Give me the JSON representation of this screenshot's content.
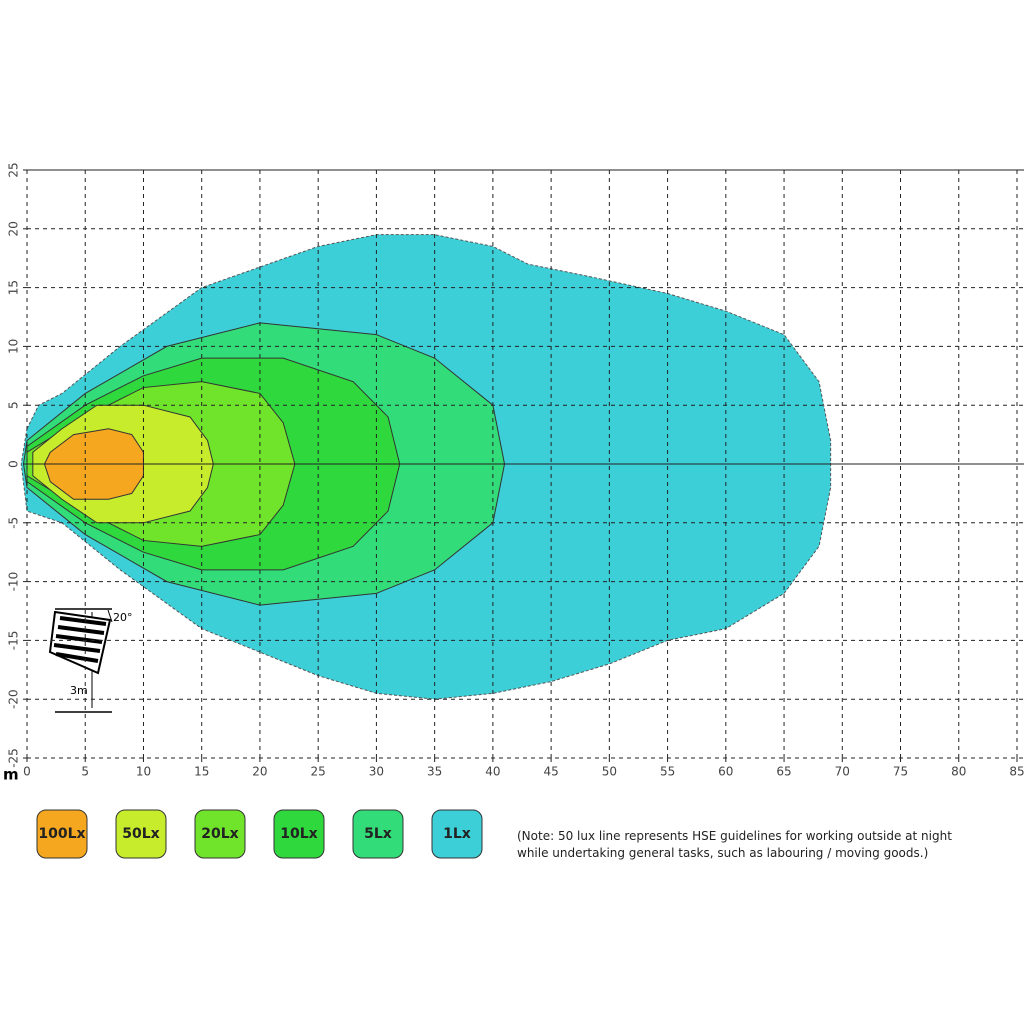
{
  "chart_data": {
    "type": "contour",
    "xlabel": "m",
    "xlim": [
      0,
      85
    ],
    "ylim": [
      -25,
      25
    ],
    "xticks": [
      0,
      5,
      10,
      15,
      20,
      25,
      30,
      35,
      40,
      45,
      50,
      55,
      60,
      65,
      70,
      75,
      80,
      85
    ],
    "yticks": [
      25,
      20,
      15,
      10,
      5,
      0,
      -5,
      -10,
      -15,
      -20,
      -25
    ],
    "grid": true,
    "series": [
      {
        "name": "100Lx",
        "color": "#f5a81f",
        "x": [
          2,
          4,
          7,
          9,
          10,
          10,
          9,
          7,
          4,
          2,
          1.5
        ],
        "y": [
          1,
          2.5,
          3,
          2.5,
          1,
          -1,
          -2.5,
          -3,
          -3,
          -1.5,
          0
        ]
      },
      {
        "name": "50Lx",
        "color": "#c6ec2c",
        "x": [
          0.5,
          3,
          6,
          10,
          14,
          15.5,
          16,
          15.5,
          14,
          10,
          6,
          3,
          0.5
        ],
        "y": [
          1,
          3,
          5,
          5,
          4,
          2,
          0,
          -2,
          -4,
          -5,
          -5,
          -3,
          -1
        ]
      },
      {
        "name": "20Lx",
        "color": "#70e42a",
        "x": [
          0,
          5,
          10,
          15,
          20,
          22,
          23,
          22,
          20,
          15,
          10,
          5,
          0
        ],
        "y": [
          1,
          4,
          6.5,
          7,
          6,
          3.5,
          0,
          -3.5,
          -6,
          -7,
          -6.5,
          -4,
          -1
        ]
      },
      {
        "name": "10Lx",
        "color": "#2fd83c",
        "x": [
          0,
          5,
          10,
          15,
          22,
          28,
          31,
          32,
          31,
          28,
          22,
          15,
          10,
          5,
          0
        ],
        "y": [
          1.5,
          5,
          7.5,
          9,
          9,
          7,
          4,
          0,
          -4,
          -7,
          -9,
          -9,
          -7.5,
          -5,
          -1.5
        ]
      },
      {
        "name": "5Lx",
        "color": "#32dc78",
        "x": [
          0,
          5,
          12,
          20,
          25,
          30,
          35,
          40,
          41,
          40,
          35,
          30,
          25,
          20,
          12,
          5,
          0,
          -0.3
        ],
        "y": [
          2,
          6,
          10,
          12,
          11.5,
          11,
          9,
          5,
          0,
          -5,
          -9,
          -11,
          -11.5,
          -12,
          -10,
          -6,
          -2,
          0
        ]
      },
      {
        "name": "1Lx",
        "color": "#3ccfd8",
        "x": [
          0,
          1,
          3,
          8,
          15,
          25,
          30,
          35,
          40,
          43,
          48,
          55,
          60,
          65,
          68,
          69,
          69,
          68,
          65,
          60,
          55,
          50,
          45,
          40,
          35,
          30,
          25,
          15,
          8,
          3,
          0,
          -0.5
        ],
        "y": [
          3,
          5,
          6,
          10,
          15,
          18.5,
          19.5,
          19.5,
          18.5,
          17,
          16,
          14.5,
          13,
          11,
          7,
          2,
          -2,
          -7,
          -11,
          -14,
          -15,
          -17,
          -18.5,
          -19.5,
          -20,
          -19.5,
          -18,
          -14,
          -9,
          -5,
          -4,
          0
        ]
      }
    ],
    "annotations": {
      "angle": "20°",
      "height": "3m"
    },
    "note": "(Note: 50 lux line represents HSE guidelines for working outside at night while undertaking general tasks, such as labouring / moving goods.)"
  }
}
